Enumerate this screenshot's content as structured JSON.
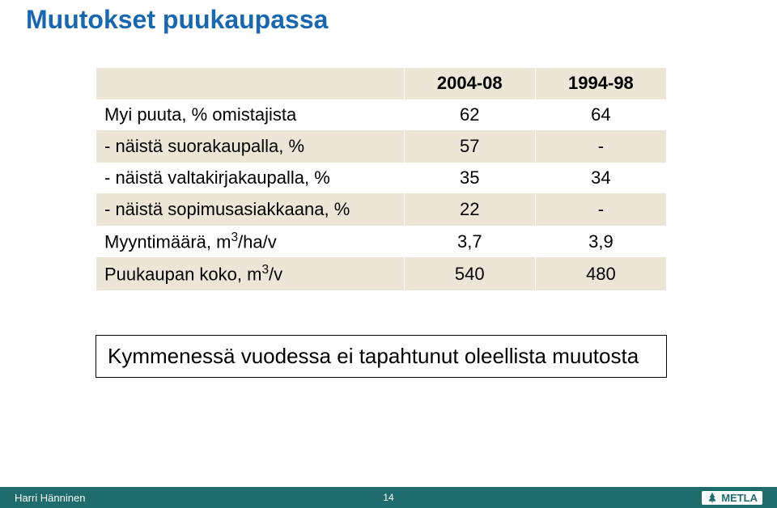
{
  "title": "Muutokset puukaupassa",
  "table": {
    "columns": [
      "",
      "2004-08",
      "1994-98"
    ],
    "rows": [
      {
        "label": "Myi puuta, % omistajista",
        "c1": "62",
        "c2": "64"
      },
      {
        "label": " - näistä suorakaupalla, %",
        "c1": "57",
        "c2": "-"
      },
      {
        "label": " - näistä valtakirjakaupalla, %",
        "c1": "35",
        "c2": "34"
      },
      {
        "label": " - näistä sopimusasiakkaana, %",
        "c1": "22",
        "c2": "-"
      },
      {
        "label": "Myyntimäärä, m³/ha/v",
        "c1": "3,7",
        "c2": "3,9",
        "sup": true
      },
      {
        "label": "Puukaupan koko, m³/v",
        "c1": "540",
        "c2": "480",
        "sup": true
      }
    ],
    "header_bg": "#ece6d6",
    "row_alt_bg": "#ece6d6",
    "font_size": 22
  },
  "summary": "Kymmenessä vuodessa ei tapahtunut oleellista muutosta",
  "footer": {
    "author": "Harri Hänninen",
    "page": "14",
    "logo_text": "METLA",
    "bg": "#1e6c6c"
  },
  "colors": {
    "title": "#1867b2",
    "text": "#000000",
    "footer_bg": "#1e6c6c",
    "footer_text": "#ffffff",
    "table_header_bg": "#ece6d6"
  }
}
